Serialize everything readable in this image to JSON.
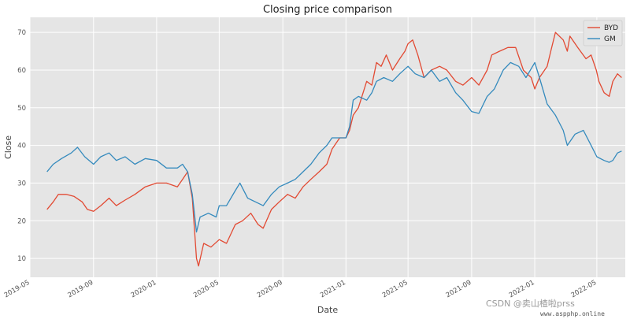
{
  "chart_data": {
    "type": "line",
    "title": "Closing price comparison",
    "xlabel": "Date",
    "ylabel": "Close",
    "xlim": [
      "2019-05-01",
      "2022-06-25"
    ],
    "ylim": [
      5,
      74
    ],
    "grid": true,
    "legend": "top-right",
    "x_ticks": [
      "2019-05",
      "2019-09",
      "2020-01",
      "2020-05",
      "2020-09",
      "2021-01",
      "2021-05",
      "2021-09",
      "2022-01",
      "2022-05"
    ],
    "x_tick_dates": [
      "2019-05-01",
      "2019-09-01",
      "2020-01-01",
      "2020-05-01",
      "2020-09-01",
      "2021-01-01",
      "2021-05-01",
      "2021-09-01",
      "2022-01-01",
      "2022-05-01"
    ],
    "y_ticks": [
      10,
      20,
      30,
      40,
      50,
      60,
      70
    ],
    "series": [
      {
        "name": "BYD",
        "color": "#e24a33",
        "points": [
          [
            "2019-06-03",
            23
          ],
          [
            "2019-06-15",
            25
          ],
          [
            "2019-06-25",
            27
          ],
          [
            "2019-07-10",
            27
          ],
          [
            "2019-07-25",
            26.5
          ],
          [
            "2019-08-10",
            25
          ],
          [
            "2019-08-20",
            23
          ],
          [
            "2019-09-01",
            22.5
          ],
          [
            "2019-09-15",
            24
          ],
          [
            "2019-10-01",
            26
          ],
          [
            "2019-10-15",
            24
          ],
          [
            "2019-11-01",
            25.5
          ],
          [
            "2019-11-20",
            27
          ],
          [
            "2019-12-10",
            29
          ],
          [
            "2020-01-01",
            30
          ],
          [
            "2020-01-20",
            30
          ],
          [
            "2020-02-10",
            29
          ],
          [
            "2020-02-20",
            31
          ],
          [
            "2020-03-01",
            33
          ],
          [
            "2020-03-10",
            26
          ],
          [
            "2020-03-18",
            10
          ],
          [
            "2020-03-22",
            8
          ],
          [
            "2020-04-01",
            14
          ],
          [
            "2020-04-15",
            13
          ],
          [
            "2020-05-01",
            15
          ],
          [
            "2020-05-15",
            14
          ],
          [
            "2020-06-01",
            19
          ],
          [
            "2020-06-15",
            20
          ],
          [
            "2020-07-01",
            22
          ],
          [
            "2020-07-15",
            19
          ],
          [
            "2020-07-25",
            18
          ],
          [
            "2020-08-10",
            23
          ],
          [
            "2020-08-25",
            25
          ],
          [
            "2020-09-10",
            27
          ],
          [
            "2020-09-25",
            26
          ],
          [
            "2020-10-10",
            29
          ],
          [
            "2020-10-25",
            31
          ],
          [
            "2020-11-10",
            33
          ],
          [
            "2020-11-25",
            35
          ],
          [
            "2020-12-05",
            39
          ],
          [
            "2020-12-20",
            42
          ],
          [
            "2021-01-01",
            42
          ],
          [
            "2021-01-08",
            44
          ],
          [
            "2021-01-15",
            48
          ],
          [
            "2021-01-25",
            50
          ],
          [
            "2021-02-10",
            57
          ],
          [
            "2021-02-20",
            56
          ],
          [
            "2021-03-01",
            62
          ],
          [
            "2021-03-10",
            61
          ],
          [
            "2021-03-20",
            64
          ],
          [
            "2021-04-01",
            60
          ],
          [
            "2021-04-15",
            63
          ],
          [
            "2021-04-25",
            65
          ],
          [
            "2021-05-01",
            67
          ],
          [
            "2021-05-10",
            68
          ],
          [
            "2021-05-20",
            64
          ],
          [
            "2021-06-01",
            58
          ],
          [
            "2021-06-15",
            60
          ],
          [
            "2021-07-01",
            61
          ],
          [
            "2021-07-15",
            60
          ],
          [
            "2021-08-01",
            57
          ],
          [
            "2021-08-15",
            56
          ],
          [
            "2021-09-01",
            58
          ],
          [
            "2021-09-15",
            56
          ],
          [
            "2021-10-01",
            60
          ],
          [
            "2021-10-10",
            64
          ],
          [
            "2021-10-25",
            65
          ],
          [
            "2021-11-10",
            66
          ],
          [
            "2021-11-25",
            66
          ],
          [
            "2021-12-10",
            60
          ],
          [
            "2021-12-25",
            58
          ],
          [
            "2022-01-01",
            55
          ],
          [
            "2022-01-10",
            58
          ],
          [
            "2022-01-25",
            61
          ],
          [
            "2022-02-01",
            65
          ],
          [
            "2022-02-10",
            70
          ],
          [
            "2022-02-25",
            68
          ],
          [
            "2022-03-05",
            65
          ],
          [
            "2022-03-10",
            69
          ],
          [
            "2022-03-25",
            66
          ],
          [
            "2022-04-10",
            63
          ],
          [
            "2022-04-20",
            64
          ],
          [
            "2022-04-30",
            60
          ],
          [
            "2022-05-05",
            57
          ],
          [
            "2022-05-15",
            54
          ],
          [
            "2022-05-25",
            53
          ],
          [
            "2022-06-01",
            57
          ],
          [
            "2022-06-10",
            59
          ],
          [
            "2022-06-18",
            58
          ]
        ]
      },
      {
        "name": "GM",
        "color": "#348abd",
        "points": [
          [
            "2019-06-03",
            33
          ],
          [
            "2019-06-15",
            35
          ],
          [
            "2019-07-01",
            36.5
          ],
          [
            "2019-07-20",
            38
          ],
          [
            "2019-08-01",
            39.5
          ],
          [
            "2019-08-15",
            37
          ],
          [
            "2019-09-01",
            35
          ],
          [
            "2019-09-15",
            37
          ],
          [
            "2019-10-01",
            38
          ],
          [
            "2019-10-15",
            36
          ],
          [
            "2019-11-01",
            37
          ],
          [
            "2019-11-20",
            35
          ],
          [
            "2019-12-10",
            36.5
          ],
          [
            "2020-01-01",
            36
          ],
          [
            "2020-01-20",
            34
          ],
          [
            "2020-02-10",
            34
          ],
          [
            "2020-02-20",
            35
          ],
          [
            "2020-03-01",
            33
          ],
          [
            "2020-03-10",
            27
          ],
          [
            "2020-03-18",
            17
          ],
          [
            "2020-03-25",
            21
          ],
          [
            "2020-04-10",
            22
          ],
          [
            "2020-04-25",
            21
          ],
          [
            "2020-05-01",
            24
          ],
          [
            "2020-05-15",
            24
          ],
          [
            "2020-06-01",
            28
          ],
          [
            "2020-06-10",
            30
          ],
          [
            "2020-06-25",
            26
          ],
          [
            "2020-07-10",
            25
          ],
          [
            "2020-07-25",
            24
          ],
          [
            "2020-08-10",
            27
          ],
          [
            "2020-08-25",
            29
          ],
          [
            "2020-09-10",
            30
          ],
          [
            "2020-09-25",
            31
          ],
          [
            "2020-10-10",
            33
          ],
          [
            "2020-10-25",
            35
          ],
          [
            "2020-11-10",
            38
          ],
          [
            "2020-11-25",
            40
          ],
          [
            "2020-12-05",
            42
          ],
          [
            "2020-12-20",
            42
          ],
          [
            "2021-01-01",
            42
          ],
          [
            "2021-01-08",
            45
          ],
          [
            "2021-01-15",
            52
          ],
          [
            "2021-01-25",
            53
          ],
          [
            "2021-02-10",
            52
          ],
          [
            "2021-02-20",
            54
          ],
          [
            "2021-03-01",
            57
          ],
          [
            "2021-03-15",
            58
          ],
          [
            "2021-04-01",
            57
          ],
          [
            "2021-04-15",
            59
          ],
          [
            "2021-05-01",
            61
          ],
          [
            "2021-05-15",
            59
          ],
          [
            "2021-06-01",
            58
          ],
          [
            "2021-06-15",
            60
          ],
          [
            "2021-07-01",
            57
          ],
          [
            "2021-07-15",
            58
          ],
          [
            "2021-08-01",
            54
          ],
          [
            "2021-08-15",
            52
          ],
          [
            "2021-09-01",
            49
          ],
          [
            "2021-09-15",
            48.5
          ],
          [
            "2021-10-01",
            53
          ],
          [
            "2021-10-15",
            55
          ],
          [
            "2021-11-01",
            60
          ],
          [
            "2021-11-15",
            62
          ],
          [
            "2021-12-01",
            61
          ],
          [
            "2021-12-15",
            58
          ],
          [
            "2022-01-01",
            62
          ],
          [
            "2022-01-10",
            58
          ],
          [
            "2022-01-25",
            51
          ],
          [
            "2022-02-10",
            48
          ],
          [
            "2022-02-25",
            44
          ],
          [
            "2022-03-05",
            40
          ],
          [
            "2022-03-20",
            43
          ],
          [
            "2022-04-05",
            44
          ],
          [
            "2022-04-20",
            40
          ],
          [
            "2022-05-01",
            37
          ],
          [
            "2022-05-15",
            36
          ],
          [
            "2022-05-25",
            35.5
          ],
          [
            "2022-06-01",
            36
          ],
          [
            "2022-06-10",
            38
          ],
          [
            "2022-06-18",
            38.5
          ]
        ]
      }
    ]
  },
  "watermark": {
    "line1": "CSDN @卖山楂啦prss",
    "line2": "www.aspphp.online"
  }
}
